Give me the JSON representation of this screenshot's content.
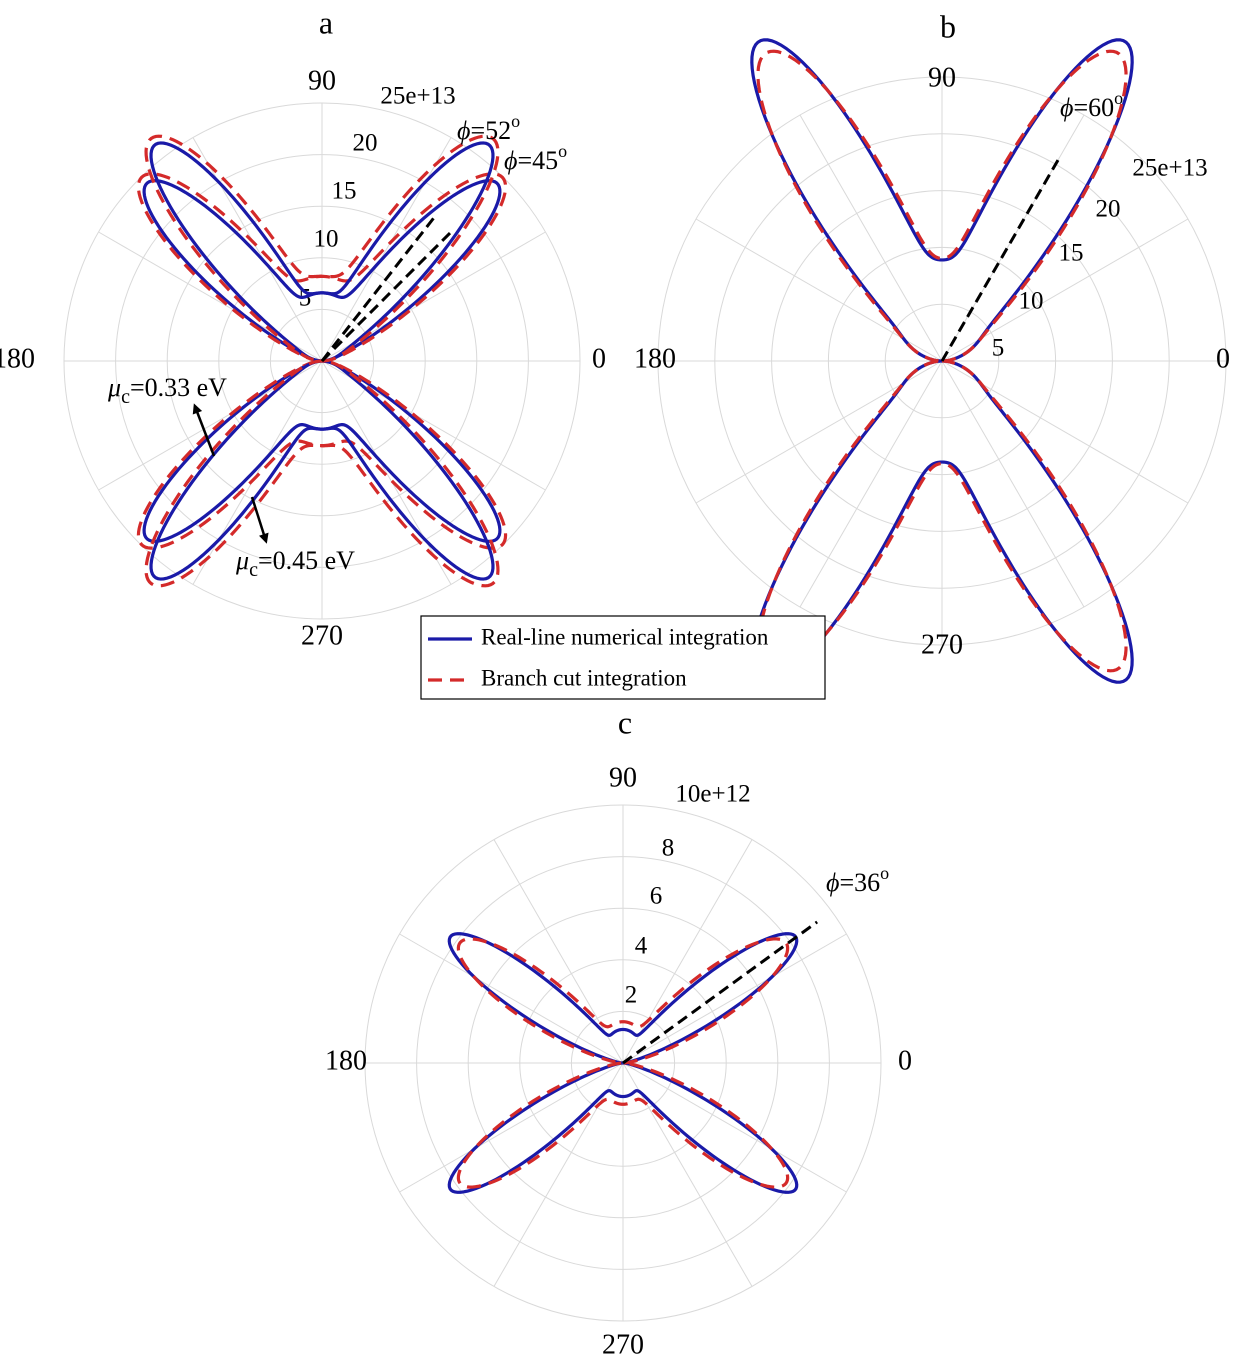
{
  "colors": {
    "real_line": "#1a1aa8",
    "branch_cut": "#d42a2a",
    "phi_line": "#000000",
    "grid": "#d9d9d9"
  },
  "legend": {
    "entries": [
      {
        "label": "Real-line numerical integration",
        "color": "#1a1aa8",
        "style": "solid"
      },
      {
        "label": "Branch cut integration",
        "color": "#d42a2a",
        "style": "dashed"
      }
    ]
  },
  "chart_data": [
    {
      "type": "polar-line",
      "panel": "a",
      "angle_tick_labels": [
        "90",
        "180",
        "270",
        "0"
      ],
      "radial_tick_labels": [
        "5",
        "10",
        "15",
        "20",
        "25e+13"
      ],
      "rlim": [
        0,
        25
      ],
      "grid": true,
      "phi_lines": [
        {
          "label": "ϕ=52",
          "sup": "o",
          "angle_deg": 52
        },
        {
          "label": "ϕ=45",
          "sup": "o",
          "angle_deg": 45
        }
      ],
      "annotations": [
        {
          "sym": "μ",
          "sub": "c",
          "text": "=0.33 eV",
          "points_to_angle_deg": 150
        },
        {
          "sym": "μ",
          "sub": "c",
          "text": "=0.45 eV",
          "points_to_angle_deg": 222
        }
      ],
      "series": [
        {
          "legend": "Real-line numerical integration",
          "curve": "μc=0.33 eV",
          "lobe_angle_deg": 45,
          "peak": 19.8,
          "broadside": 6.6,
          "sharpness": 2.2
        },
        {
          "legend": "Branch cut integration",
          "curve": "μc=0.33 eV",
          "lobe_angle_deg": 45,
          "peak": 19.5,
          "broadside": 8.2,
          "sharpness": 1.9
        },
        {
          "legend": "Real-line numerical integration",
          "curve": "μc=0.45 eV",
          "lobe_angle_deg": 52,
          "peak": 21.5,
          "broadside": 6.6,
          "sharpness": 2.4
        },
        {
          "legend": "Branch cut integration",
          "curve": "μc=0.45 eV",
          "lobe_angle_deg": 52,
          "peak": 21.0,
          "broadside": 8.2,
          "sharpness": 2.0
        }
      ]
    },
    {
      "type": "polar-line",
      "panel": "b",
      "angle_tick_labels": [
        "90",
        "180",
        "270",
        "0"
      ],
      "radial_tick_labels": [
        "5",
        "10",
        "15",
        "20",
        "25e+13"
      ],
      "rlim": [
        0,
        25
      ],
      "grid": true,
      "phi_lines": [
        {
          "label": "ϕ=60",
          "sup": "o",
          "angle_deg": 60
        }
      ],
      "series": [
        {
          "legend": "Real-line numerical integration",
          "lobe_angle_deg": 60,
          "peak": 25.0,
          "broadside": 8.8,
          "sharpness": 2.6
        },
        {
          "legend": "Branch cut integration",
          "lobe_angle_deg": 60,
          "peak": 23.8,
          "broadside": 8.8,
          "sharpness": 2.2
        }
      ]
    },
    {
      "type": "polar-line",
      "panel": "c",
      "angle_tick_labels": [
        "90",
        "180",
        "270",
        "0"
      ],
      "radial_tick_labels": [
        "2",
        "4",
        "6",
        "8",
        "10e+12"
      ],
      "rlim": [
        0,
        10
      ],
      "grid": true,
      "phi_lines": [
        {
          "label": "ϕ=36",
          "sup": "o",
          "angle_deg": 36
        }
      ],
      "series": [
        {
          "legend": "Real-line numerical integration",
          "lobe_angle_deg": 36,
          "peak": 7.6,
          "broadside": 1.3,
          "sharpness": 2.4
        },
        {
          "legend": "Branch cut integration",
          "lobe_angle_deg": 36,
          "peak": 7.0,
          "broadside": 1.6,
          "sharpness": 1.7
        }
      ]
    }
  ]
}
